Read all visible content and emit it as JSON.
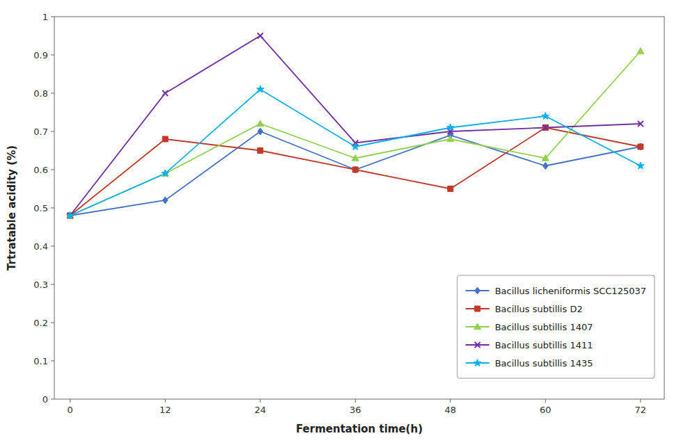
{
  "chart_data": {
    "type": "line",
    "x": [
      0,
      12,
      24,
      36,
      48,
      60,
      72
    ],
    "series": [
      {
        "name": "Bacillus licheniformis SCC125037",
        "color": "#4472C4",
        "marker": "diamond",
        "values": [
          0.48,
          0.52,
          0.7,
          0.6,
          0.69,
          0.61,
          0.66
        ]
      },
      {
        "name": "Bacillus subtillis D2",
        "color": "#C0392B",
        "marker": "square",
        "values": [
          0.48,
          0.68,
          0.65,
          0.6,
          0.55,
          0.71,
          0.66
        ]
      },
      {
        "name": "Bacillus subtillis 1407",
        "color": "#92D050",
        "marker": "triangle",
        "values": [
          0.48,
          0.59,
          0.72,
          0.63,
          0.68,
          0.63,
          0.91
        ]
      },
      {
        "name": "Bacillus subtillis 1411",
        "color": "#7030A0",
        "marker": "x",
        "values": [
          0.48,
          0.8,
          0.95,
          0.67,
          0.7,
          0.71,
          0.72
        ]
      },
      {
        "name": "Bacillus subtillis 1435",
        "color": "#00B0F0",
        "marker": "star",
        "values": [
          0.48,
          0.59,
          0.81,
          0.66,
          0.71,
          0.74,
          0.61
        ]
      }
    ],
    "xlabel": "Fermentation time(h)",
    "ylabel": "Trtratable acidity (%)",
    "xlim": [
      -2,
      75
    ],
    "ylim": [
      0,
      1.0
    ],
    "xticks": [
      0,
      12,
      24,
      36,
      48,
      60,
      72
    ],
    "yticks": [
      0,
      0.1,
      0.2,
      0.3,
      0.4,
      0.5,
      0.6,
      0.7,
      0.8,
      0.9,
      1
    ],
    "grid": false,
    "legend": "lower right"
  }
}
